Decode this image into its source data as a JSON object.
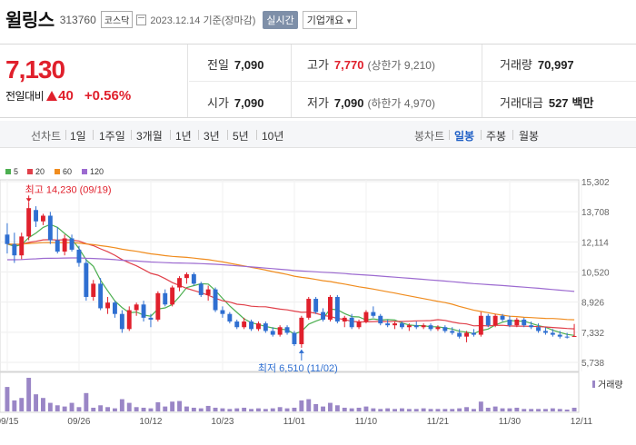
{
  "header": {
    "name": "윌링스",
    "code": "313760",
    "market": "코스닥",
    "date": "2023.12.14",
    "date_suffix": "기준(장마감)",
    "realtime_label": "실시간",
    "company_label": "기업개요"
  },
  "price": {
    "current": "7,130",
    "change_label": "전일대비",
    "change_value": "40",
    "change_pct": "+0.56%",
    "direction": "up"
  },
  "stats": {
    "prev_close_label": "전일",
    "prev_close": "7,090",
    "high_label": "고가",
    "high": "7,770",
    "upper_limit_label": "(상한가 9,210)",
    "volume_label": "거래량",
    "volume": "70,997",
    "open_label": "시가",
    "open": "7,090",
    "low_label": "저가",
    "low": "7,090",
    "lower_limit_label": "(하한가 4,970)",
    "trade_amount_label": "거래대금",
    "trade_amount": "527",
    "trade_amount_unit": "백만"
  },
  "toolbar": {
    "line_chart_label": "선차트",
    "periods": [
      "1일",
      "1주일",
      "3개월",
      "1년",
      "3년",
      "5년",
      "10년"
    ],
    "candle_chart_label": "봉차트",
    "candle_periods": [
      "일봉",
      "주봉",
      "월봉"
    ],
    "active_candle": "일봉"
  },
  "colors": {
    "up": "#e0202c",
    "down": "#2f6fd1",
    "ma5": "#4caf50",
    "ma20": "#e0404a",
    "ma60": "#f08c1e",
    "ma120": "#9c6ad0",
    "accent": "#1f5fc5"
  },
  "chart_data": {
    "type": "candlestick",
    "legend": [
      {
        "name": "5",
        "color": "#4caf50"
      },
      {
        "name": "20",
        "color": "#e0404a"
      },
      {
        "name": "60",
        "color": "#f08c1e"
      },
      {
        "name": "120",
        "color": "#9c6ad0"
      }
    ],
    "y_ticks": [
      "15,302",
      "13,708",
      "12,114",
      "10,520",
      "8,926",
      "7,332",
      "5,738"
    ],
    "y_tick_values": [
      15302,
      13708,
      12114,
      10520,
      8926,
      7332,
      5738
    ],
    "ylim": [
      5738,
      15302
    ],
    "x_ticks": [
      "09/15",
      "09/26",
      "10/12",
      "10/23",
      "11/01",
      "11/10",
      "11/21",
      "11/30",
      "12/11"
    ],
    "x_tick_index": [
      0,
      10,
      20,
      30,
      40,
      50,
      60,
      70,
      80
    ],
    "max_annotation": {
      "label": "최고 14,230 (09/19)",
      "index": 3,
      "value": 14230
    },
    "min_annotation": {
      "label": "최저 6,510 (11/02)",
      "index": 41,
      "value": 6510
    },
    "volume_label": "거래량",
    "candles": [
      [
        12500,
        13100,
        11500,
        12000
      ],
      [
        12000,
        12600,
        11000,
        11400
      ],
      [
        11400,
        12600,
        11200,
        12400
      ],
      [
        12400,
        14230,
        12200,
        13900
      ],
      [
        13800,
        14000,
        12900,
        13200
      ],
      [
        13200,
        13600,
        13000,
        13500
      ],
      [
        13500,
        13700,
        12000,
        12200
      ],
      [
        12200,
        12900,
        11500,
        11600
      ],
      [
        11600,
        12500,
        11400,
        12300
      ],
      [
        12300,
        12500,
        11600,
        11700
      ],
      [
        11700,
        11900,
        10800,
        11000
      ],
      [
        11000,
        11200,
        9000,
        9200
      ],
      [
        9200,
        10100,
        9000,
        9900
      ],
      [
        9900,
        10200,
        8500,
        8600
      ],
      [
        8600,
        9200,
        8300,
        8900
      ],
      [
        8900,
        9000,
        8100,
        8300
      ],
      [
        8300,
        8500,
        7300,
        7500
      ],
      [
        7500,
        8700,
        7400,
        8500
      ],
      [
        8500,
        8900,
        8200,
        8800
      ],
      [
        8800,
        9000,
        7900,
        8100
      ],
      [
        8100,
        8300,
        7600,
        8000
      ],
      [
        8000,
        9500,
        7900,
        9400
      ],
      [
        9400,
        9600,
        8700,
        8800
      ],
      [
        8800,
        9800,
        8700,
        9700
      ],
      [
        9700,
        10300,
        9500,
        10200
      ],
      [
        10200,
        10500,
        9900,
        10400
      ],
      [
        10400,
        10500,
        9800,
        9900
      ],
      [
        9900,
        10000,
        9200,
        9300
      ],
      [
        9300,
        9800,
        9000,
        9600
      ],
      [
        9600,
        9700,
        8400,
        8500
      ],
      [
        8500,
        8700,
        8100,
        8300
      ],
      [
        8300,
        8400,
        7800,
        7900
      ],
      [
        7900,
        8000,
        7500,
        7600
      ],
      [
        7600,
        8100,
        7500,
        7900
      ],
      [
        7900,
        8000,
        7400,
        7500
      ],
      [
        7500,
        7900,
        7400,
        7800
      ],
      [
        7800,
        7900,
        7300,
        7400
      ],
      [
        7400,
        7600,
        7100,
        7200
      ],
      [
        7200,
        7700,
        7100,
        7600
      ],
      [
        7600,
        7700,
        7200,
        7300
      ],
      [
        7300,
        7400,
        6600,
        6700
      ],
      [
        6700,
        8200,
        6510,
        8100
      ],
      [
        8100,
        9200,
        8000,
        9100
      ],
      [
        9100,
        9200,
        8300,
        8400
      ],
      [
        8400,
        8600,
        7900,
        8000
      ],
      [
        8000,
        9300,
        7900,
        9200
      ],
      [
        9200,
        9300,
        7800,
        7900
      ],
      [
        7900,
        8200,
        7600,
        8100
      ],
      [
        8100,
        8300,
        7500,
        7600
      ],
      [
        7600,
        8000,
        7500,
        7900
      ],
      [
        7900,
        8500,
        7800,
        8400
      ],
      [
        8400,
        8700,
        8100,
        8200
      ],
      [
        8200,
        8300,
        7700,
        7800
      ],
      [
        7800,
        8000,
        7600,
        7700
      ],
      [
        7700,
        7900,
        7500,
        7800
      ],
      [
        7800,
        7900,
        7500,
        7600
      ],
      [
        7600,
        7800,
        7400,
        7700
      ],
      [
        7700,
        7900,
        7500,
        7600
      ],
      [
        7600,
        7800,
        7500,
        7700
      ],
      [
        7700,
        7800,
        7400,
        7500
      ],
      [
        7500,
        7700,
        7400,
        7600
      ],
      [
        7600,
        7700,
        7300,
        7400
      ],
      [
        7400,
        7600,
        7200,
        7300
      ],
      [
        7300,
        7500,
        7000,
        7100
      ],
      [
        7100,
        7400,
        6800,
        7300
      ],
      [
        7300,
        7500,
        7100,
        7200
      ],
      [
        7200,
        8400,
        7100,
        8200
      ],
      [
        8200,
        8300,
        7600,
        7700
      ],
      [
        7700,
        8300,
        7600,
        8200
      ],
      [
        8200,
        8300,
        7900,
        8000
      ],
      [
        8000,
        8200,
        7600,
        7700
      ],
      [
        7700,
        8100,
        7600,
        8000
      ],
      [
        8000,
        8100,
        7600,
        7700
      ],
      [
        7700,
        7900,
        7500,
        7600
      ],
      [
        7600,
        7800,
        7300,
        7400
      ],
      [
        7400,
        7600,
        7200,
        7300
      ],
      [
        7300,
        7500,
        7100,
        7200
      ],
      [
        7200,
        7400,
        7000,
        7100
      ],
      [
        7100,
        7300,
        7000,
        7090
      ],
      [
        7090,
        7770,
        7090,
        7130
      ]
    ],
    "volumes": [
      40,
      18,
      22,
      55,
      28,
      22,
      14,
      10,
      8,
      14,
      7,
      30,
      6,
      10,
      7,
      5,
      20,
      14,
      7,
      6,
      5,
      15,
      8,
      16,
      17,
      8,
      6,
      5,
      9,
      6,
      5,
      4,
      5,
      6,
      4,
      5,
      4,
      5,
      7,
      5,
      6,
      18,
      20,
      12,
      8,
      14,
      10,
      6,
      5,
      6,
      8,
      5,
      4,
      5,
      4,
      5,
      4,
      4,
      5,
      4,
      4,
      4,
      4,
      5,
      7,
      4,
      16,
      6,
      8,
      5,
      5,
      6,
      4,
      4,
      4,
      4,
      5,
      4,
      3,
      6
    ]
  }
}
